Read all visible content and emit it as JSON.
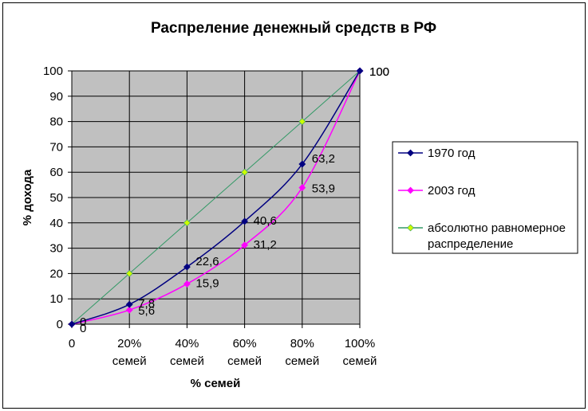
{
  "chart_data": {
    "type": "line",
    "title": "Распреление денежный средств в РФ",
    "xlabel": "% семей",
    "ylabel": "% дохода",
    "x_ticks": [
      {
        "value": 0,
        "lines": [
          "0"
        ]
      },
      {
        "value": 20,
        "lines": [
          "20%",
          "семей"
        ]
      },
      {
        "value": 40,
        "lines": [
          "40%",
          "семей"
        ]
      },
      {
        "value": 60,
        "lines": [
          "60%",
          "семей"
        ]
      },
      {
        "value": 80,
        "lines": [
          "80%",
          "семей"
        ]
      },
      {
        "value": 100,
        "lines": [
          "100%",
          "семей"
        ]
      }
    ],
    "y_ticks": [
      0,
      10,
      20,
      30,
      40,
      50,
      60,
      70,
      80,
      90,
      100
    ],
    "xlim": [
      0,
      100
    ],
    "ylim": [
      0,
      100
    ],
    "grid": true,
    "plot_background": "#c0c0c0",
    "legend_position": "right",
    "series": [
      {
        "name": "1970 год",
        "color": "#000080",
        "marker": "diamond",
        "x": [
          0,
          20,
          40,
          60,
          80,
          100
        ],
        "y": [
          0,
          7.8,
          22.6,
          40.6,
          63.2,
          100
        ],
        "labels": [
          "0",
          "7,8",
          "22,6",
          "40,6",
          "63,2",
          "100"
        ]
      },
      {
        "name": "2003 год",
        "color": "#ff00ff",
        "marker": "diamond",
        "x": [
          0,
          20,
          40,
          60,
          80,
          100
        ],
        "y": [
          0,
          5.6,
          15.9,
          31.2,
          53.9,
          100
        ],
        "labels": [
          "0",
          "5,6",
          "15,9",
          "31,2",
          "53,9",
          "100"
        ]
      },
      {
        "name": "абсолютно равномерное распределение",
        "legend_lines": [
          "абсолютно равномерное",
          "распределение"
        ],
        "color": "#339966",
        "marker_color": "#ccff00",
        "marker": "diamond",
        "x": [
          0,
          20,
          40,
          60,
          80,
          100
        ],
        "y": [
          0,
          20,
          40,
          60,
          80,
          100
        ],
        "labels": []
      }
    ]
  }
}
